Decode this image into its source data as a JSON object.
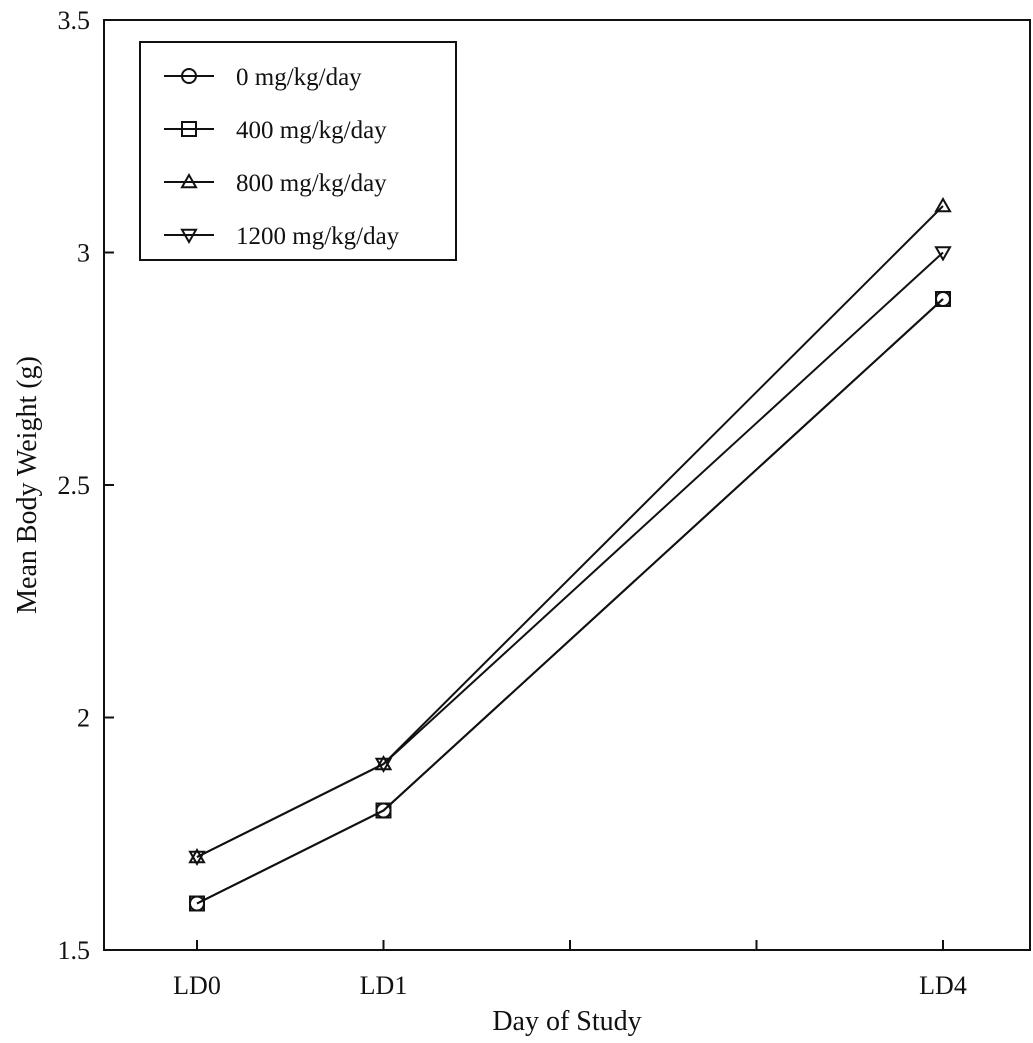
{
  "chart_data": {
    "type": "line",
    "title": "",
    "xlabel": "Day of Study",
    "ylabel": "Mean Body Weight (g)",
    "x_tick_labels": [
      "LD0",
      "LD1",
      "LD4"
    ],
    "x_ticks": [
      0,
      1,
      4
    ],
    "x_minor_ticks": [
      2,
      3
    ],
    "xlim": [
      -0.5,
      4.5
    ],
    "y_tick_labels": [
      "1.5",
      "2",
      "2.5",
      "3",
      "3.5"
    ],
    "y_ticks": [
      1.5,
      2,
      2.5,
      3,
      3.5
    ],
    "ylim": [
      1.5,
      3.5
    ],
    "grid": false,
    "legend_position": "top-left",
    "line_color": "#111111",
    "series": [
      {
        "name": "0 mg/kg/day",
        "marker": "circle",
        "x": [
          0,
          1,
          4
        ],
        "y": [
          1.6,
          1.8,
          2.9
        ]
      },
      {
        "name": "400 mg/kg/day",
        "marker": "square",
        "x": [
          0,
          1,
          4
        ],
        "y": [
          1.6,
          1.8,
          2.9
        ]
      },
      {
        "name": "800 mg/kg/day",
        "marker": "triangle-up",
        "x": [
          0,
          1,
          4
        ],
        "y": [
          1.7,
          1.9,
          3.1
        ]
      },
      {
        "name": "1200 mg/kg/day",
        "marker": "triangle-down",
        "x": [
          0,
          1,
          4
        ],
        "y": [
          1.7,
          1.9,
          3.0
        ]
      }
    ]
  }
}
